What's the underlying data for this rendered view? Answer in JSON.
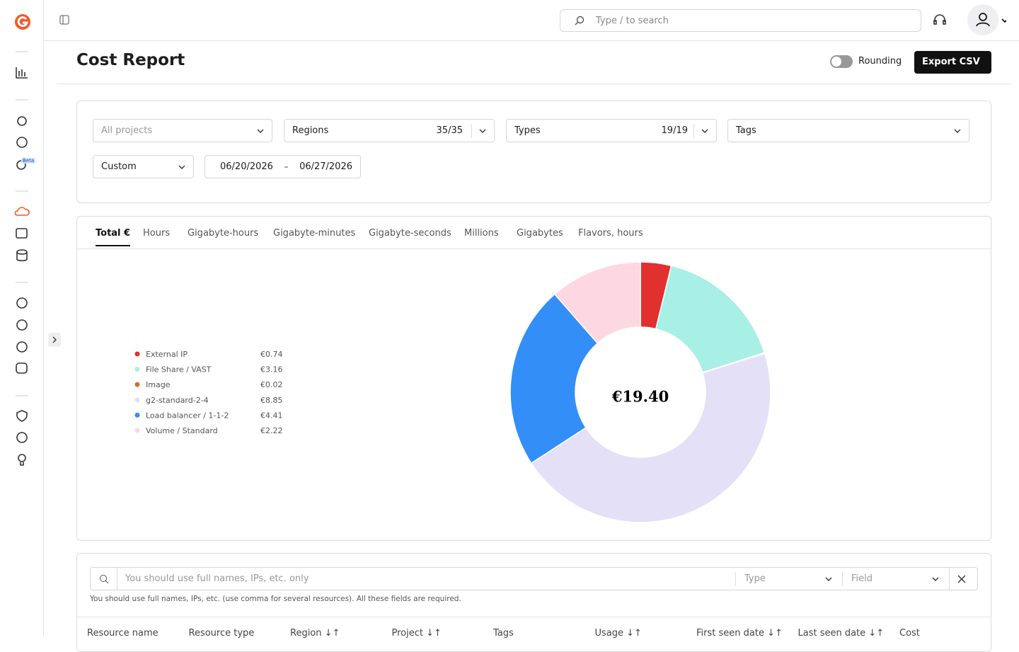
{
  "topbar": {
    "search_placeholder": "Type / to search"
  },
  "sidebar": {
    "badge": "Beta"
  },
  "header": {
    "title": "Cost Report",
    "rounding": "Rounding",
    "export": "Export CSV"
  },
  "filters": {
    "projects": "All projects",
    "regions": "Regions",
    "regions_count": "35/35",
    "types": "Types",
    "types_count": "19/19",
    "tags": "Tags",
    "period": "Custom",
    "date_from": "06/20/2026",
    "date_to": "06/27/2026"
  },
  "tabs": [
    "Total €",
    "Hours",
    "Gigabyte-hours",
    "Gigabyte-minutes",
    "Gigabyte-seconds",
    "Millions",
    "Gigabytes",
    "Flavors, hours"
  ],
  "chart_data": {
    "type": "donut",
    "center_label": "€19.40",
    "categories": [
      "External IP",
      "File Share / VAST",
      "Image",
      "g2-standard-2-4",
      "Load balancer / 1-1-2",
      "Volume / Standard"
    ],
    "values": [
      0.74,
      3.16,
      0.02,
      8.85,
      4.41,
      2.22
    ],
    "value_labels": [
      "€0.74",
      "€3.16",
      "€0.02",
      "€8.85",
      "€4.41",
      "€2.22"
    ],
    "colors": [
      "#e0312f",
      "#a8efe6",
      "#c97432",
      "#e4e0f7",
      "#338ef7",
      "#fdd7e1"
    ]
  },
  "resource_search": {
    "placeholder": "You should use full names, IPs, etc. only",
    "type": "Type",
    "field": "Field",
    "hint": "You should use full names, IPs, etc. (use comma for several resources). All these fields are required."
  },
  "table": {
    "headers": [
      "Resource name",
      "Resource type",
      "Region ↓↑",
      "Project ↓↑",
      "Tags",
      "Usage ↓↑",
      "First seen date ↓↑",
      "Last seen date ↓↑",
      "Cost"
    ]
  }
}
